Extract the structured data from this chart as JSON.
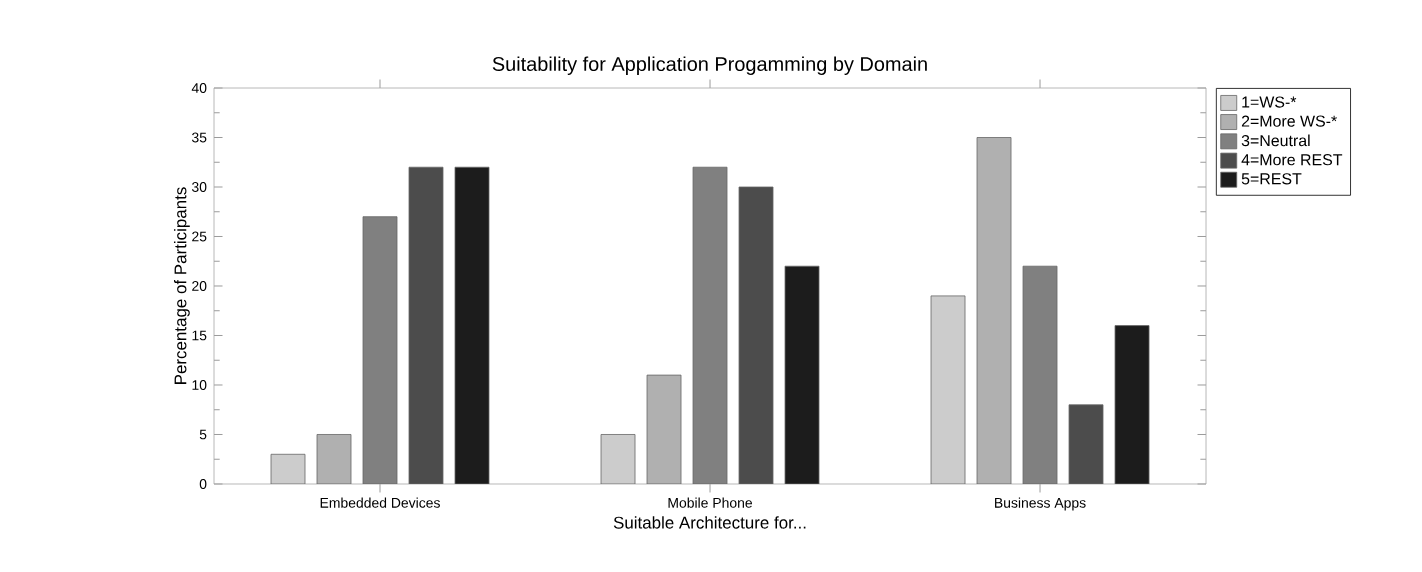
{
  "chart_data": {
    "type": "bar",
    "title": "Suitability for Application Progamming by Domain",
    "xlabel": "Suitable Architecture for...",
    "ylabel": "Percentage of Participants",
    "categories": [
      "Embedded Devices",
      "Mobile Phone",
      "Business Apps"
    ],
    "series": [
      {
        "name": "1=WS-*",
        "color": "#cccccc",
        "values": [
          3,
          5,
          19
        ]
      },
      {
        "name": "2=More WS-*",
        "color": "#b0b0b0",
        "values": [
          5,
          11,
          35
        ]
      },
      {
        "name": "3=Neutral",
        "color": "#808080",
        "values": [
          27,
          32,
          22
        ]
      },
      {
        "name": "4=More REST",
        "color": "#4c4c4c",
        "values": [
          32,
          30,
          8
        ]
      },
      {
        "name": "5=REST",
        "color": "#1c1c1c",
        "values": [
          32,
          22,
          16
        ]
      }
    ],
    "ylim": [
      0,
      40
    ],
    "yticks": [
      0,
      5,
      10,
      15,
      20,
      25,
      30,
      35,
      40
    ],
    "legend": "top right",
    "grid": false
  }
}
